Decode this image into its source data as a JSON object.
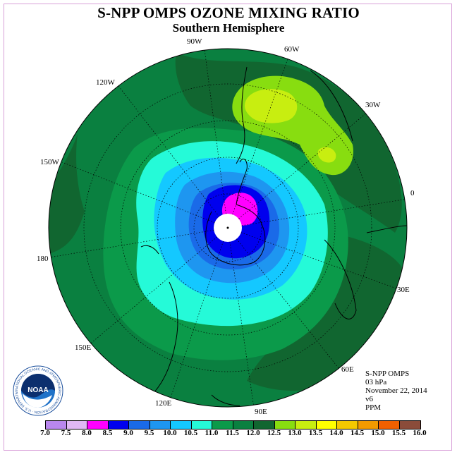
{
  "title": "S-NPP OMPS OZONE MIXING RATIO",
  "subtitle": "Southern Hemisphere",
  "longitude_labels": {
    "w90": "90W",
    "w60": "60W",
    "w30": "30W",
    "w120": "120W",
    "w150": "150W",
    "e0": "0",
    "e180": "180",
    "e30": "30E",
    "e60": "60E",
    "e90": "90E",
    "e120": "120E",
    "e150": "150E"
  },
  "info": {
    "instrument": "S-NPP OMPS",
    "level": "03 hPa",
    "date": "November 22, 2014",
    "version": "v6",
    "units": "PPM"
  },
  "logo": {
    "text": "NOAA",
    "ring_text": "NATIONAL OCEANIC AND ATMOSPHERIC ADMINISTRATION · U.S. DEPARTMENT OF COMMERCE"
  },
  "colorbar": {
    "ticks": [
      "7.0",
      "7.5",
      "8.0",
      "8.5",
      "9.0",
      "9.5",
      "10.0",
      "10.5",
      "11.0",
      "11.5",
      "12.0",
      "12.5",
      "13.0",
      "13.5",
      "14.0",
      "14.5",
      "15.0",
      "15.5",
      "16.0"
    ],
    "colors": [
      "#b987ee",
      "#e0b8f5",
      "#ff00ff",
      "#0000ee",
      "#1a6ae8",
      "#1e96f0",
      "#14c8ff",
      "#25fad8",
      "#0b9a4a",
      "#0a8040",
      "#116630",
      "#88dd10",
      "#c8ee10",
      "#ffff00",
      "#f5c800",
      "#f29a00",
      "#f06000",
      "#ee0000",
      "#8b4c3a"
    ]
  },
  "colors": {
    "outer_ring": "#0a8040",
    "deep_green": "#116630",
    "mid_green": "#0b9a4a",
    "cyan": "#25fad8",
    "light_blue": "#14c8ff",
    "blue": "#1e96f0",
    "dark_blue": "#1a6ae8",
    "navy": "#0000ee",
    "magenta": "#ff00ff",
    "lime": "#88dd10",
    "yellow_green": "#c8ee10"
  }
}
